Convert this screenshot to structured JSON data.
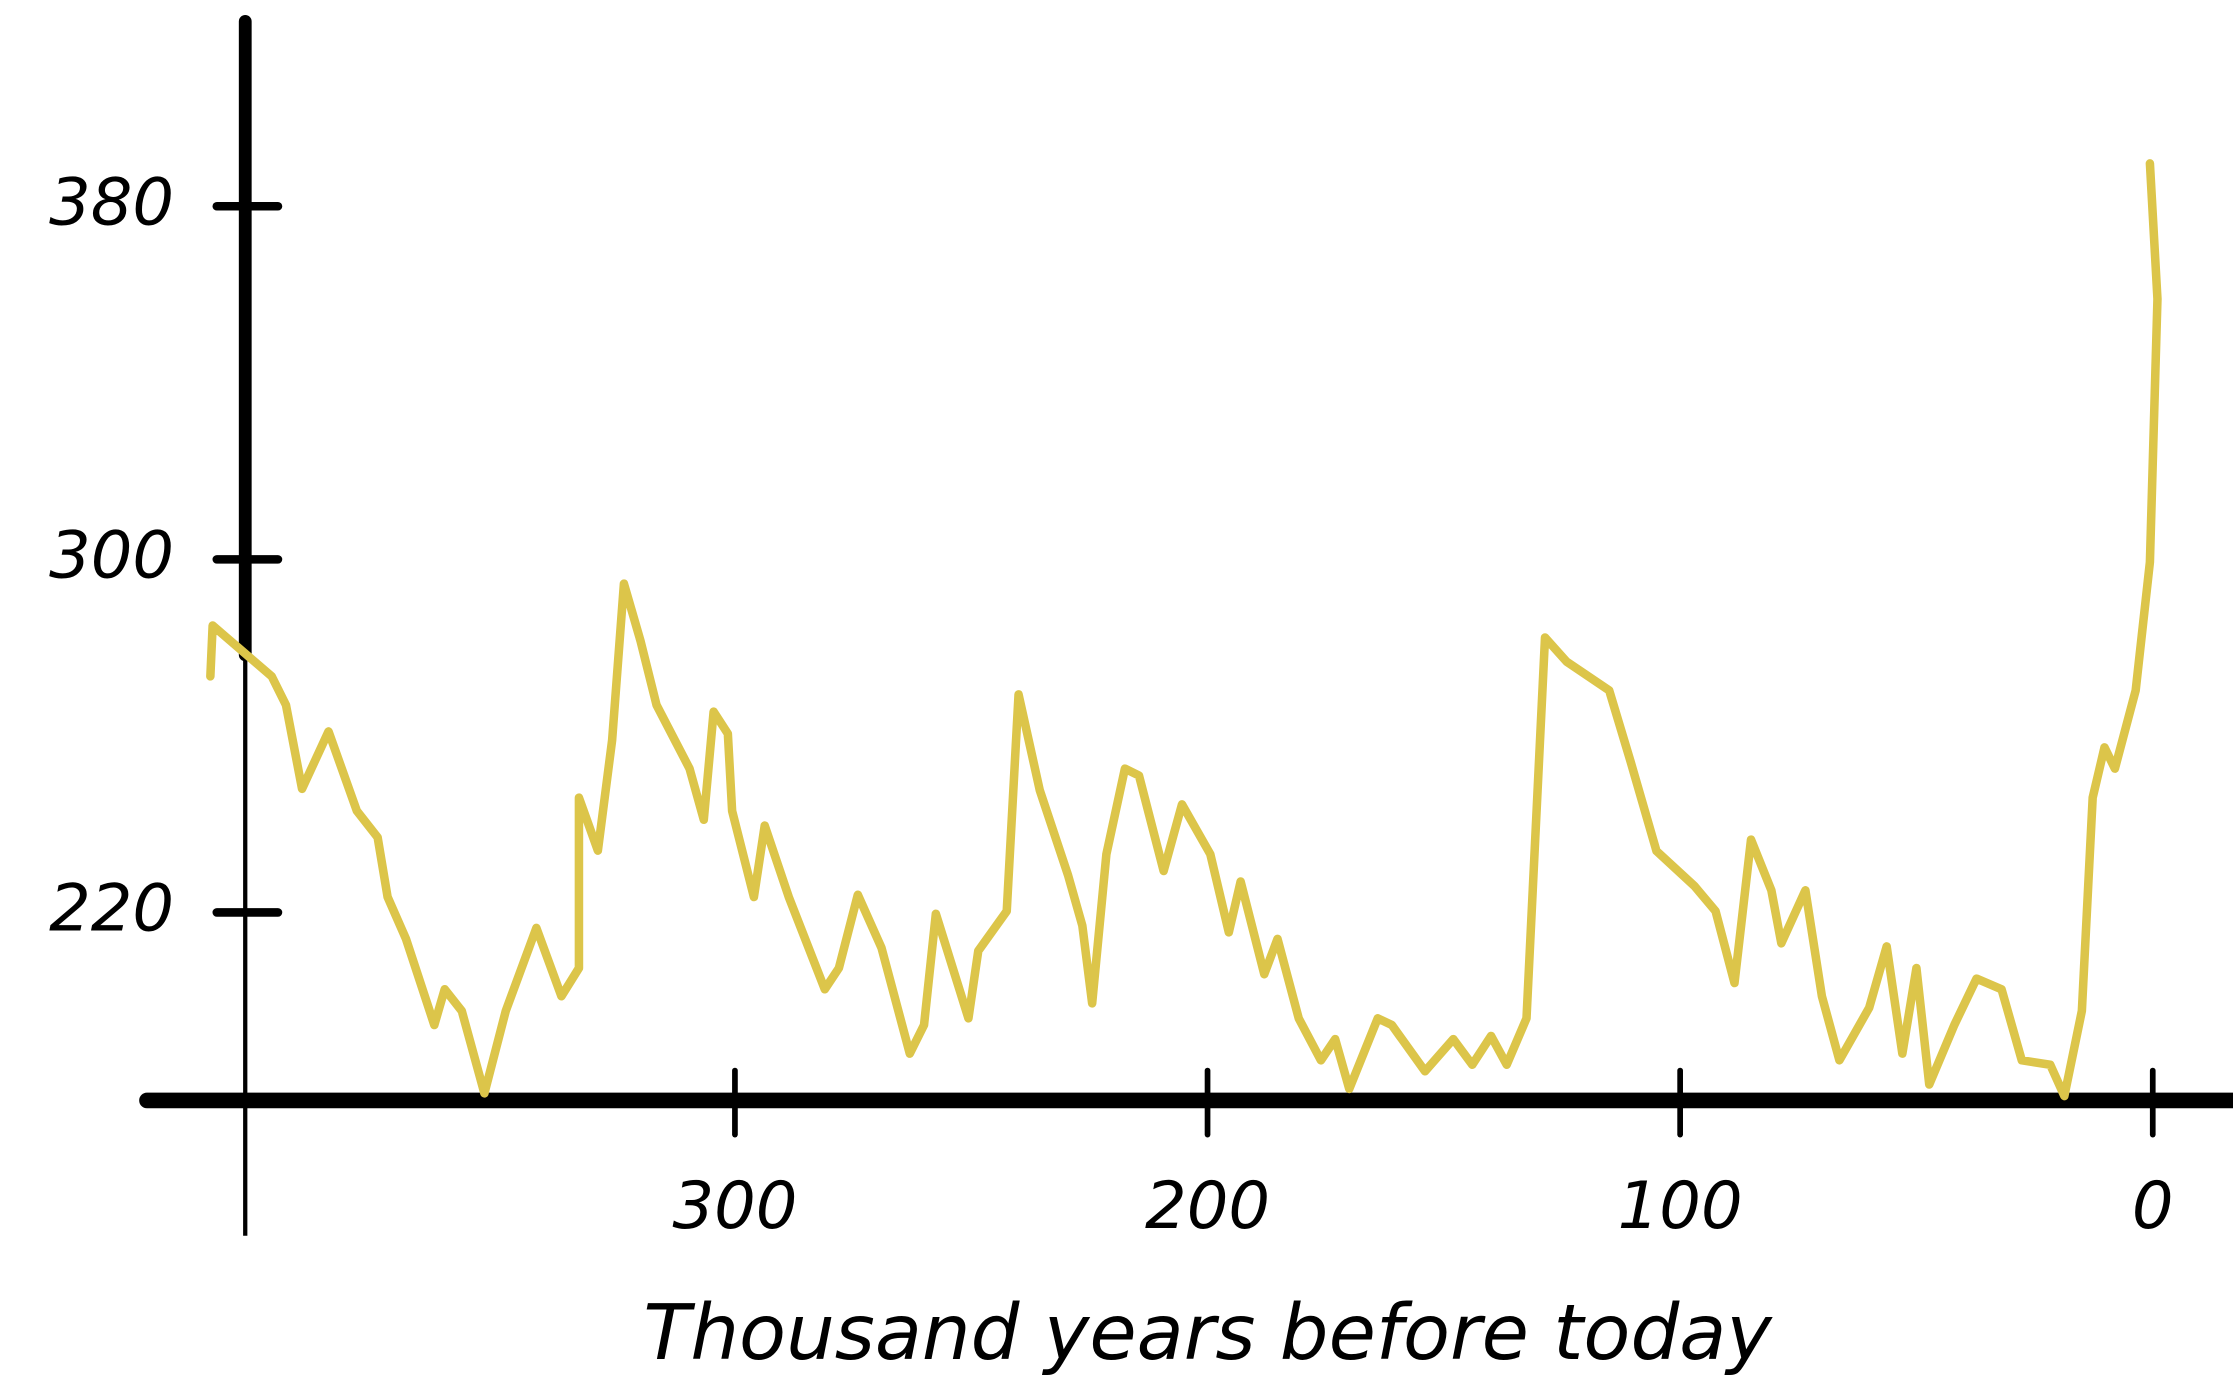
{
  "chart_data": {
    "type": "line",
    "x_label": "Thousand years before today",
    "xlim": [
      424.4,
      -16.9
    ],
    "ylim": [
      177.4,
      421.9
    ],
    "xticks": [
      300,
      200,
      100,
      0
    ],
    "yticks": [
      220,
      300,
      380
    ],
    "series": [
      {
        "color": "#dcc54a",
        "x": [
          411,
          410.5,
          404,
          398,
          395,
          391.6,
          386,
          380,
          375.6,
          373.5,
          369.6,
          363.6,
          361.4,
          357.8,
          353,
          348.5,
          342,
          336.7,
          333,
          333,
          329,
          326,
          323.5,
          320,
          316.6,
          309.6,
          306.6,
          304.5,
          301.5,
          300.6,
          296,
          293.7,
          288.6,
          281,
          278,
          274,
          269,
          263,
          260,
          257.5,
          250.6,
          248.5,
          242.5,
          240,
          235.5,
          229.5,
          226.5,
          224.4,
          221.4,
          217.5,
          214.5,
          209.3,
          205.4,
          199.4,
          195.5,
          193,
          188,
          185.2,
          180.7,
          176,
          173,
          170,
          164,
          161,
          154,
          148,
          144,
          140,
          136.7,
          132.5,
          128.6,
          124,
          115,
          110.5,
          105,
          97,
          92.5,
          88.5,
          85,
          80.7,
          78.6,
          73.5,
          70,
          66.3,
          60,
          56.3,
          53,
          50,
          47.3,
          42,
          37.3,
          32,
          27.7,
          21.7,
          18.7,
          15,
          12.7,
          10.2,
          8,
          3.6,
          0.6,
          -1,
          0.6
        ],
        "values": [
          273.5,
          285,
          279,
          273.5,
          267,
          248,
          261,
          243,
          237,
          223.5,
          214,
          194.5,
          202.6,
          197.7,
          179,
          197.7,
          216.5,
          201,
          207.4,
          246,
          234,
          259,
          294.5,
          281.6,
          267,
          252.6,
          241,
          265.5,
          260.5,
          243,
          223.5,
          239.7,
          223.5,
          202.6,
          207.4,
          224,
          212,
          188,
          194.5,
          219.7,
          196,
          211.3,
          220.3,
          269.4,
          247.7,
          228.4,
          217,
          199.4,
          233.2,
          252.6,
          251,
          229.4,
          244.5,
          233.2,
          215.5,
          227,
          206,
          214,
          196,
          186.5,
          191.3,
          180,
          196,
          194.5,
          184,
          191.3,
          185.5,
          192,
          185.5,
          196,
          282.3,
          276.8,
          270.3,
          254.2,
          233.9,
          226,
          220.3,
          204,
          236.5,
          225,
          213,
          225,
          201,
          186.5,
          198.4,
          212.3,
          188,
          207.4,
          181,
          194.5,
          205,
          202.6,
          186.5,
          185.5,
          178.4,
          197.7,
          246,
          257.4,
          252.6,
          270.3,
          299.4,
          359,
          389.7
        ]
      }
    ]
  }
}
